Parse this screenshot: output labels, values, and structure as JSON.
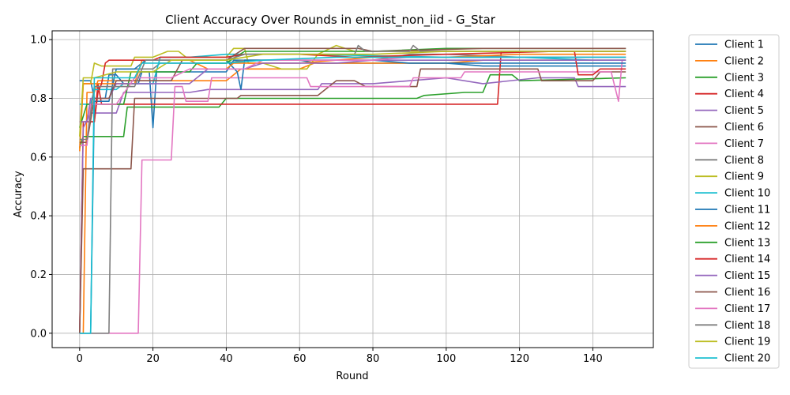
{
  "chart_data": {
    "type": "line",
    "title": "Client Accuracy Over Rounds in emnist_non_iid - G_Star",
    "xlabel": "Round",
    "ylabel": "Accuracy",
    "xlim": [
      -7.5,
      156.5
    ],
    "ylim": [
      -0.049,
      1.03
    ],
    "xticks": [
      0,
      20,
      40,
      60,
      80,
      100,
      120,
      140
    ],
    "yticks": [
      0.0,
      0.2,
      0.4,
      0.6,
      0.8,
      1.0
    ],
    "xtick_labels": [
      "0",
      "20",
      "40",
      "60",
      "80",
      "100",
      "120",
      "140"
    ],
    "ytick_labels": [
      "0.0",
      "0.2",
      "0.4",
      "0.6",
      "0.8",
      "1.0"
    ],
    "grid": true,
    "legend_position": "outside-right",
    "series": [
      {
        "name": "Client 1",
        "color": "#1f77b4",
        "points": [
          [
            0,
            0.86
          ],
          [
            3,
            0.86
          ],
          [
            4,
            0.8
          ],
          [
            7,
            0.8
          ],
          [
            8,
            0.88
          ],
          [
            10,
            0.88
          ],
          [
            12,
            0.85
          ],
          [
            16,
            0.85
          ],
          [
            17,
            0.89
          ],
          [
            19,
            0.89
          ],
          [
            20,
            0.7
          ],
          [
            21,
            0.89
          ],
          [
            40,
            0.89
          ],
          [
            42,
            0.93
          ],
          [
            60,
            0.93
          ],
          [
            65,
            0.92
          ],
          [
            100,
            0.92
          ],
          [
            110,
            0.91
          ],
          [
            149,
            0.91
          ]
        ]
      },
      {
        "name": "Client 2",
        "color": "#ff7f0e",
        "points": [
          [
            0,
            0.0
          ],
          [
            1,
            0.0
          ],
          [
            2,
            0.82
          ],
          [
            4,
            0.82
          ],
          [
            5,
            0.86
          ],
          [
            40,
            0.86
          ],
          [
            44,
            0.9
          ],
          [
            60,
            0.9
          ],
          [
            64,
            0.92
          ],
          [
            100,
            0.92
          ],
          [
            110,
            0.93
          ],
          [
            149,
            0.93
          ]
        ]
      },
      {
        "name": "Client 3",
        "color": "#2ca02c",
        "points": [
          [
            0,
            0.63
          ],
          [
            1,
            0.67
          ],
          [
            10,
            0.67
          ],
          [
            12,
            0.67
          ],
          [
            13,
            0.77
          ],
          [
            38,
            0.77
          ],
          [
            40,
            0.8
          ],
          [
            92,
            0.8
          ],
          [
            94,
            0.81
          ],
          [
            105,
            0.82
          ],
          [
            110,
            0.82
          ],
          [
            112,
            0.88
          ],
          [
            118,
            0.88
          ],
          [
            120,
            0.86
          ],
          [
            149,
            0.87
          ]
        ]
      },
      {
        "name": "Client 4",
        "color": "#d62728",
        "points": [
          [
            0,
            0.0
          ],
          [
            1,
            0.72
          ],
          [
            4,
            0.72
          ],
          [
            5,
            0.85
          ],
          [
            6,
            0.78
          ],
          [
            40,
            0.78
          ],
          [
            114,
            0.78
          ],
          [
            115,
            0.96
          ],
          [
            149,
            0.96
          ]
        ]
      },
      {
        "name": "Client 5",
        "color": "#9467bd",
        "points": [
          [
            0,
            0.0
          ],
          [
            1,
            0.7
          ],
          [
            3,
            0.75
          ],
          [
            10,
            0.75
          ],
          [
            12,
            0.82
          ],
          [
            30,
            0.82
          ],
          [
            35,
            0.83
          ],
          [
            65,
            0.83
          ],
          [
            66,
            0.85
          ],
          [
            80,
            0.85
          ],
          [
            90,
            0.86
          ],
          [
            100,
            0.87
          ],
          [
            110,
            0.85
          ],
          [
            125,
            0.87
          ],
          [
            135,
            0.87
          ],
          [
            136,
            0.84
          ],
          [
            149,
            0.84
          ]
        ]
      },
      {
        "name": "Client 6",
        "color": "#8c564b",
        "points": [
          [
            0,
            0.0
          ],
          [
            1,
            0.56
          ],
          [
            14,
            0.56
          ],
          [
            15,
            0.8
          ],
          [
            43,
            0.8
          ],
          [
            44,
            0.81
          ],
          [
            65,
            0.81
          ],
          [
            70,
            0.86
          ],
          [
            75,
            0.86
          ],
          [
            78,
            0.84
          ],
          [
            92,
            0.84
          ],
          [
            93,
            0.9
          ],
          [
            110,
            0.9
          ],
          [
            125,
            0.9
          ],
          [
            126,
            0.86
          ],
          [
            140,
            0.86
          ],
          [
            142,
            0.89
          ],
          [
            149,
            0.89
          ]
        ]
      },
      {
        "name": "Client 7",
        "color": "#e377c2",
        "points": [
          [
            0,
            0.0
          ],
          [
            16,
            0.0
          ],
          [
            17,
            0.59
          ],
          [
            25,
            0.59
          ],
          [
            26,
            0.84
          ],
          [
            28,
            0.84
          ],
          [
            29,
            0.79
          ],
          [
            35,
            0.79
          ],
          [
            36,
            0.87
          ],
          [
            62,
            0.87
          ],
          [
            63,
            0.84
          ],
          [
            90,
            0.84
          ],
          [
            91,
            0.87
          ],
          [
            104,
            0.87
          ],
          [
            105,
            0.89
          ],
          [
            145,
            0.89
          ],
          [
            147,
            0.79
          ],
          [
            148,
            0.93
          ],
          [
            149,
            0.93
          ]
        ]
      },
      {
        "name": "Client 8",
        "color": "#7f7f7f",
        "points": [
          [
            0,
            0.0
          ],
          [
            8,
            0.0
          ],
          [
            9,
            0.9
          ],
          [
            20,
            0.9
          ],
          [
            22,
            0.92
          ],
          [
            40,
            0.92
          ],
          [
            45,
            0.93
          ],
          [
            80,
            0.93
          ],
          [
            90,
            0.95
          ],
          [
            100,
            0.95
          ],
          [
            120,
            0.94
          ],
          [
            149,
            0.94
          ]
        ]
      },
      {
        "name": "Client 9",
        "color": "#bcbd22",
        "points": [
          [
            0,
            0.63
          ],
          [
            1,
            0.85
          ],
          [
            3,
            0.85
          ],
          [
            4,
            0.92
          ],
          [
            6,
            0.91
          ],
          [
            14,
            0.91
          ],
          [
            15,
            0.94
          ],
          [
            20,
            0.94
          ],
          [
            24,
            0.96
          ],
          [
            27,
            0.96
          ],
          [
            29,
            0.94
          ],
          [
            40,
            0.94
          ],
          [
            42,
            0.97
          ],
          [
            45,
            0.97
          ],
          [
            46,
            0.92
          ],
          [
            50,
            0.92
          ],
          [
            55,
            0.9
          ],
          [
            62,
            0.9
          ],
          [
            65,
            0.95
          ],
          [
            70,
            0.98
          ],
          [
            75,
            0.96
          ],
          [
            100,
            0.96
          ],
          [
            149,
            0.96
          ]
        ]
      },
      {
        "name": "Client 10",
        "color": "#17becf",
        "points": [
          [
            0,
            0.78
          ],
          [
            3,
            0.78
          ],
          [
            4,
            0.83
          ],
          [
            10,
            0.83
          ],
          [
            12,
            0.85
          ],
          [
            20,
            0.85
          ],
          [
            22,
            0.94
          ],
          [
            30,
            0.94
          ],
          [
            40,
            0.95
          ],
          [
            60,
            0.95
          ],
          [
            100,
            0.94
          ],
          [
            120,
            0.94
          ],
          [
            140,
            0.93
          ],
          [
            149,
            0.93
          ]
        ]
      },
      {
        "name": "Client 11",
        "color": "#1f77b4",
        "points": [
          [
            0,
            0.0
          ],
          [
            3,
            0.0
          ],
          [
            4,
            0.79
          ],
          [
            8,
            0.79
          ],
          [
            10,
            0.9
          ],
          [
            15,
            0.9
          ],
          [
            18,
            0.93
          ],
          [
            40,
            0.93
          ],
          [
            43,
            0.89
          ],
          [
            44,
            0.83
          ],
          [
            45,
            0.93
          ],
          [
            60,
            0.93
          ],
          [
            80,
            0.93
          ],
          [
            90,
            0.92
          ],
          [
            120,
            0.92
          ],
          [
            149,
            0.92
          ]
        ]
      },
      {
        "name": "Client 12",
        "color": "#ff7f0e",
        "points": [
          [
            0,
            0.62
          ],
          [
            1,
            0.85
          ],
          [
            15,
            0.85
          ],
          [
            17,
            0.93
          ],
          [
            30,
            0.93
          ],
          [
            35,
            0.9
          ],
          [
            40,
            0.9
          ],
          [
            42,
            0.92
          ],
          [
            60,
            0.92
          ],
          [
            80,
            0.94
          ],
          [
            100,
            0.94
          ],
          [
            120,
            0.95
          ],
          [
            149,
            0.95
          ]
        ]
      },
      {
        "name": "Client 13",
        "color": "#2ca02c",
        "points": [
          [
            0,
            0.7
          ],
          [
            2,
            0.78
          ],
          [
            12,
            0.78
          ],
          [
            14,
            0.89
          ],
          [
            30,
            0.89
          ],
          [
            32,
            0.92
          ],
          [
            40,
            0.92
          ],
          [
            45,
            0.96
          ],
          [
            60,
            0.96
          ],
          [
            80,
            0.96
          ],
          [
            100,
            0.97
          ],
          [
            149,
            0.97
          ]
        ]
      },
      {
        "name": "Client 14",
        "color": "#d62728",
        "points": [
          [
            0,
            0.72
          ],
          [
            4,
            0.72
          ],
          [
            5,
            0.82
          ],
          [
            6,
            0.85
          ],
          [
            7,
            0.92
          ],
          [
            8,
            0.93
          ],
          [
            20,
            0.93
          ],
          [
            22,
            0.94
          ],
          [
            40,
            0.94
          ],
          [
            45,
            0.95
          ],
          [
            60,
            0.95
          ],
          [
            75,
            0.94
          ],
          [
            100,
            0.95
          ],
          [
            130,
            0.96
          ],
          [
            135,
            0.96
          ],
          [
            136,
            0.88
          ],
          [
            140,
            0.88
          ],
          [
            142,
            0.9
          ],
          [
            149,
            0.9
          ]
        ]
      },
      {
        "name": "Client 15",
        "color": "#9467bd",
        "points": [
          [
            0,
            0.72
          ],
          [
            2,
            0.72
          ],
          [
            3,
            0.8
          ],
          [
            8,
            0.8
          ],
          [
            10,
            0.85
          ],
          [
            30,
            0.85
          ],
          [
            35,
            0.9
          ],
          [
            45,
            0.9
          ],
          [
            50,
            0.92
          ],
          [
            70,
            0.92
          ],
          [
            80,
            0.93
          ],
          [
            120,
            0.93
          ],
          [
            149,
            0.93
          ]
        ]
      },
      {
        "name": "Client 16",
        "color": "#8c564b",
        "points": [
          [
            0,
            0.65
          ],
          [
            2,
            0.65
          ],
          [
            4,
            0.8
          ],
          [
            8,
            0.8
          ],
          [
            10,
            0.86
          ],
          [
            25,
            0.86
          ],
          [
            28,
            0.93
          ],
          [
            40,
            0.93
          ],
          [
            45,
            0.97
          ],
          [
            70,
            0.97
          ],
          [
            76,
            0.97
          ],
          [
            80,
            0.96
          ],
          [
            110,
            0.97
          ],
          [
            149,
            0.97
          ]
        ]
      },
      {
        "name": "Client 17",
        "color": "#e377c2",
        "points": [
          [
            0,
            0.64
          ],
          [
            2,
            0.64
          ],
          [
            3,
            0.78
          ],
          [
            10,
            0.78
          ],
          [
            15,
            0.87
          ],
          [
            25,
            0.87
          ],
          [
            30,
            0.9
          ],
          [
            45,
            0.9
          ],
          [
            50,
            0.93
          ],
          [
            80,
            0.93
          ],
          [
            90,
            0.94
          ],
          [
            120,
            0.94
          ],
          [
            149,
            0.94
          ]
        ]
      },
      {
        "name": "Client 18",
        "color": "#7f7f7f",
        "points": [
          [
            0,
            0.66
          ],
          [
            2,
            0.66
          ],
          [
            4,
            0.84
          ],
          [
            15,
            0.84
          ],
          [
            18,
            0.93
          ],
          [
            40,
            0.93
          ],
          [
            45,
            0.95
          ],
          [
            75,
            0.95
          ],
          [
            76,
            0.98
          ],
          [
            78,
            0.96
          ],
          [
            90,
            0.96
          ],
          [
            91,
            0.98
          ],
          [
            93,
            0.96
          ],
          [
            149,
            0.96
          ]
        ]
      },
      {
        "name": "Client 19",
        "color": "#bcbd22",
        "points": [
          [
            0,
            0.67
          ],
          [
            1,
            0.87
          ],
          [
            3,
            0.87
          ],
          [
            4,
            0.87
          ],
          [
            10,
            0.89
          ],
          [
            20,
            0.89
          ],
          [
            25,
            0.93
          ],
          [
            40,
            0.93
          ],
          [
            50,
            0.95
          ],
          [
            80,
            0.95
          ],
          [
            100,
            0.96
          ],
          [
            149,
            0.96
          ]
        ]
      },
      {
        "name": "Client 20",
        "color": "#17becf",
        "points": [
          [
            0,
            0.0
          ],
          [
            3,
            0.0
          ],
          [
            4,
            0.87
          ],
          [
            15,
            0.87
          ],
          [
            17,
            0.92
          ],
          [
            40,
            0.92
          ],
          [
            50,
            0.93
          ],
          [
            70,
            0.94
          ],
          [
            100,
            0.94
          ],
          [
            149,
            0.94
          ]
        ]
      }
    ]
  }
}
